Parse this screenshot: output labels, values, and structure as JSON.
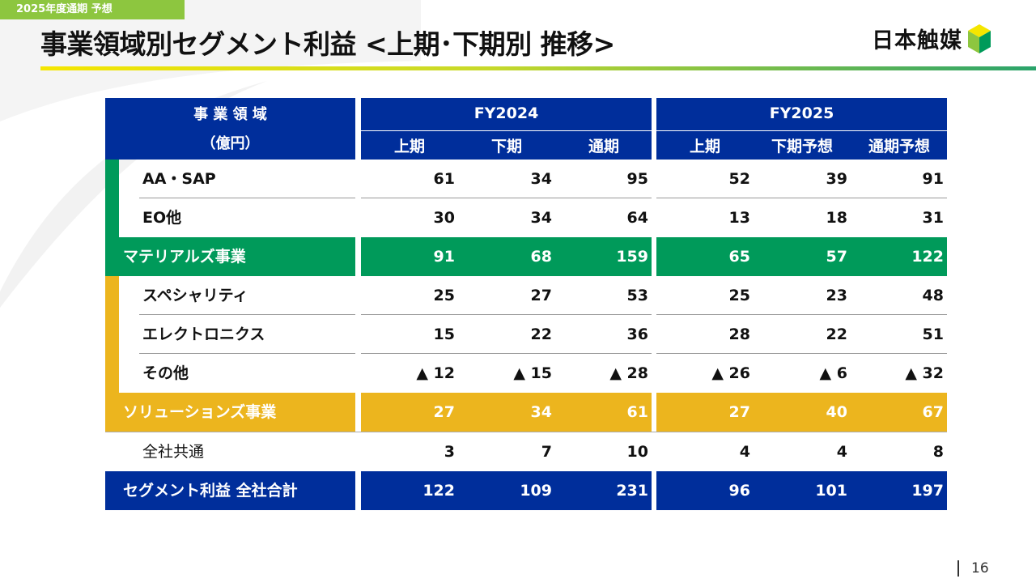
{
  "header": {
    "tag": "2025年度通期 予想",
    "title": "事業領域別セグメント利益 <上期･下期別 推移>",
    "logo_text": "日本触媒",
    "page_number": "16"
  },
  "colors": {
    "navy": "#002e9b",
    "green": "#009a5a",
    "gold": "#ecb51e",
    "tag": "#8dc63f"
  },
  "table": {
    "head_title": "事 業 領 域",
    "head_unit": "（億円）",
    "fy2024": "FY2024",
    "fy2025": "FY2025",
    "cols": [
      "上期",
      "下期",
      "通期",
      "上期",
      "下期予想",
      "通期予想"
    ],
    "rows": [
      {
        "label": "AA・SAP",
        "values": [
          "61",
          "34",
          "95",
          "52",
          "39",
          "91"
        ]
      },
      {
        "label": "EO他",
        "values": [
          "30",
          "34",
          "64",
          "13",
          "18",
          "31"
        ]
      },
      {
        "label": "マテリアルズ事業",
        "values": [
          "91",
          "68",
          "159",
          "65",
          "57",
          "122"
        ]
      },
      {
        "label": "スペシャリティ",
        "values": [
          "25",
          "27",
          "53",
          "25",
          "23",
          "48"
        ]
      },
      {
        "label": "エレクトロニクス",
        "values": [
          "15",
          "22",
          "36",
          "28",
          "22",
          "51"
        ]
      },
      {
        "label": "その他",
        "values": [
          "▲ 12",
          "▲ 15",
          "▲ 28",
          "▲ 26",
          "▲ 6",
          "▲ 32"
        ]
      },
      {
        "label": "ソリューションズ事業",
        "values": [
          "27",
          "34",
          "61",
          "27",
          "40",
          "67"
        ]
      },
      {
        "label": "全社共通",
        "values": [
          "3",
          "7",
          "10",
          "4",
          "4",
          "8"
        ]
      },
      {
        "label": "セグメント利益 全社合計",
        "values": [
          "122",
          "109",
          "231",
          "96",
          "101",
          "197"
        ]
      }
    ]
  }
}
